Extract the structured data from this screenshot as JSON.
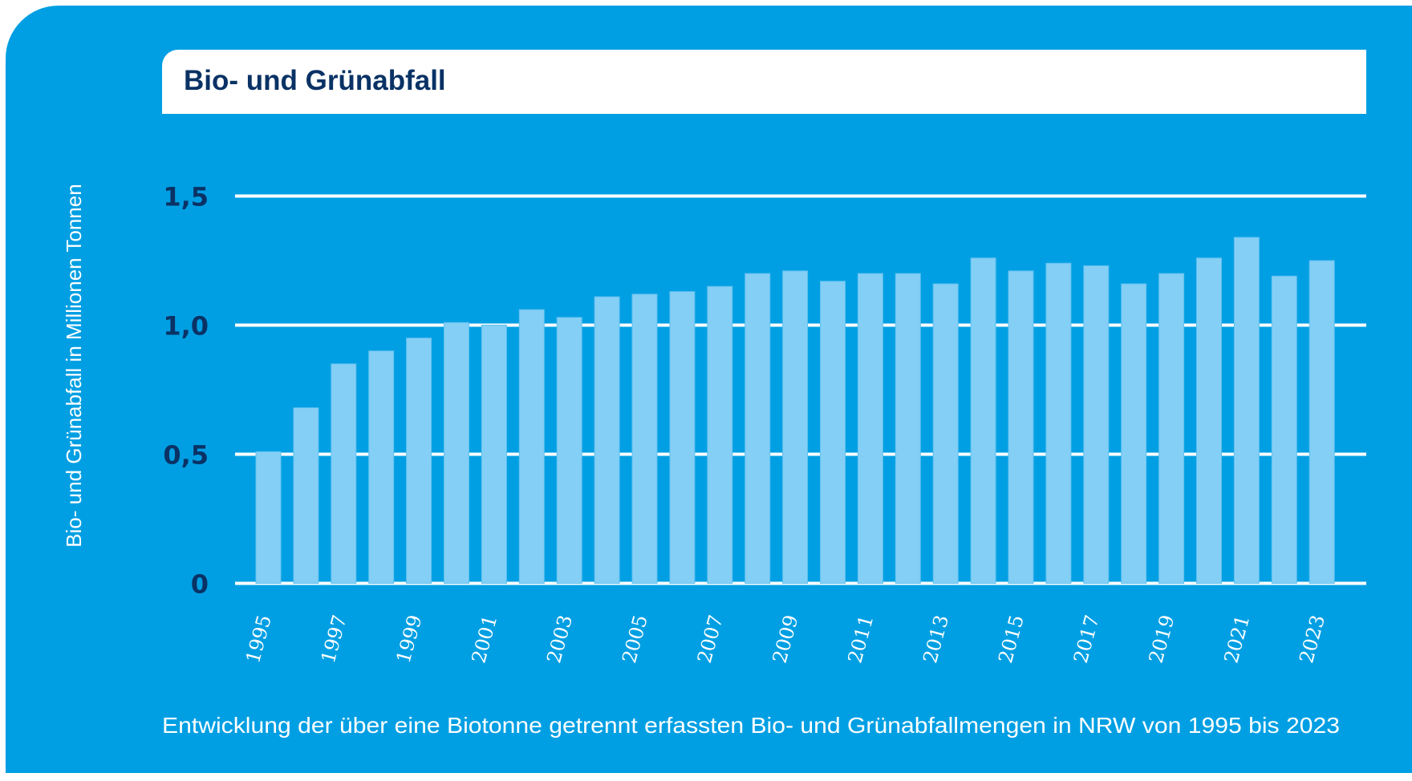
{
  "colors": {
    "background": "#009FE3",
    "bar": "#84CFF5",
    "bar_edge": "#5EC0F0",
    "gridline": "#FFFFFF",
    "title_text": "#0A3265",
    "tick_label": "#0A3265",
    "axis_label": "#FFFFFF"
  },
  "header": {
    "title": "Bio- und Grünabfall"
  },
  "caption": "Entwicklung der über eine Biotonne getrennt erfassten Bio- und Grünabfallmengen in NRW von 1995 bis 2023",
  "chart_data": {
    "type": "bar",
    "title": "Bio- und Grünabfall",
    "subtitle": "Entwicklung der über eine Biotonne getrennt erfassten Bio- und Grünabfallmengen in NRW von 1995 bis 2023",
    "xlabel": "",
    "ylabel": "Bio- und Grünabfall in Millionen Tonnen",
    "ylim": [
      0,
      1.5
    ],
    "yticks": [
      0,
      0.5,
      1.0,
      1.5
    ],
    "ytick_labels": [
      "0",
      "0,5",
      "1,0",
      "1,5"
    ],
    "grid": true,
    "legend": "none",
    "categories": [
      "1995",
      "1996",
      "1997",
      "1998",
      "1999",
      "2000",
      "2001",
      "2002",
      "2003",
      "2004",
      "2005",
      "2006",
      "2007",
      "2008",
      "2009",
      "2010",
      "2011",
      "2012",
      "2013",
      "2014",
      "2015",
      "2016",
      "2017",
      "2018",
      "2019",
      "2020",
      "2021",
      "2022",
      "2023"
    ],
    "xtick_labels": [
      "1995",
      "1997",
      "1999",
      "2001",
      "2003",
      "2005",
      "2007",
      "2009",
      "2011",
      "2013",
      "2015",
      "2017",
      "2019",
      "2021",
      "2023"
    ],
    "values": [
      0.51,
      0.68,
      0.85,
      0.9,
      0.95,
      1.01,
      1.0,
      1.06,
      1.03,
      1.11,
      1.12,
      1.13,
      1.15,
      1.2,
      1.21,
      1.17,
      1.2,
      1.2,
      1.16,
      1.26,
      1.21,
      1.24,
      1.23,
      1.16,
      1.2,
      1.26,
      1.34,
      1.19,
      1.25
    ],
    "units": "Millionen Tonnen"
  }
}
